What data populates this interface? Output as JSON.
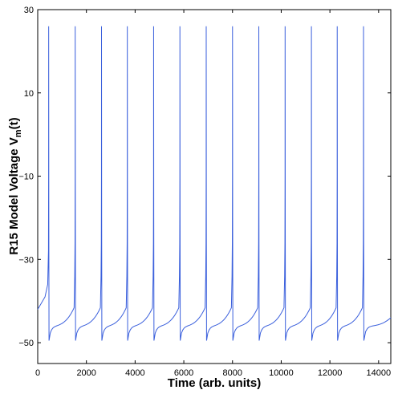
{
  "chart_data": {
    "type": "line",
    "title": "",
    "xlabel": "Time (arb. units)",
    "ylabel_main": "R15 Model Voltage V",
    "ylabel_sub": "m",
    "ylabel_tail": "(t)",
    "xlim": [
      0,
      14500
    ],
    "ylim": [
      -55,
      30
    ],
    "xticks": [
      0,
      2000,
      4000,
      6000,
      8000,
      10000,
      12000,
      14000
    ],
    "yticks": [
      -50,
      -30,
      -10,
      10,
      30
    ],
    "grid": false,
    "series": [
      {
        "color": "#3a5fdc",
        "spike_times": [
          450,
          1540,
          2620,
          3680,
          4760,
          5840,
          6920,
          8000,
          9080,
          10160,
          11240,
          12300,
          13380
        ],
        "spike_peak": 26,
        "trough": -49.5,
        "start_value": -42,
        "end_value": -42
      }
    ]
  }
}
